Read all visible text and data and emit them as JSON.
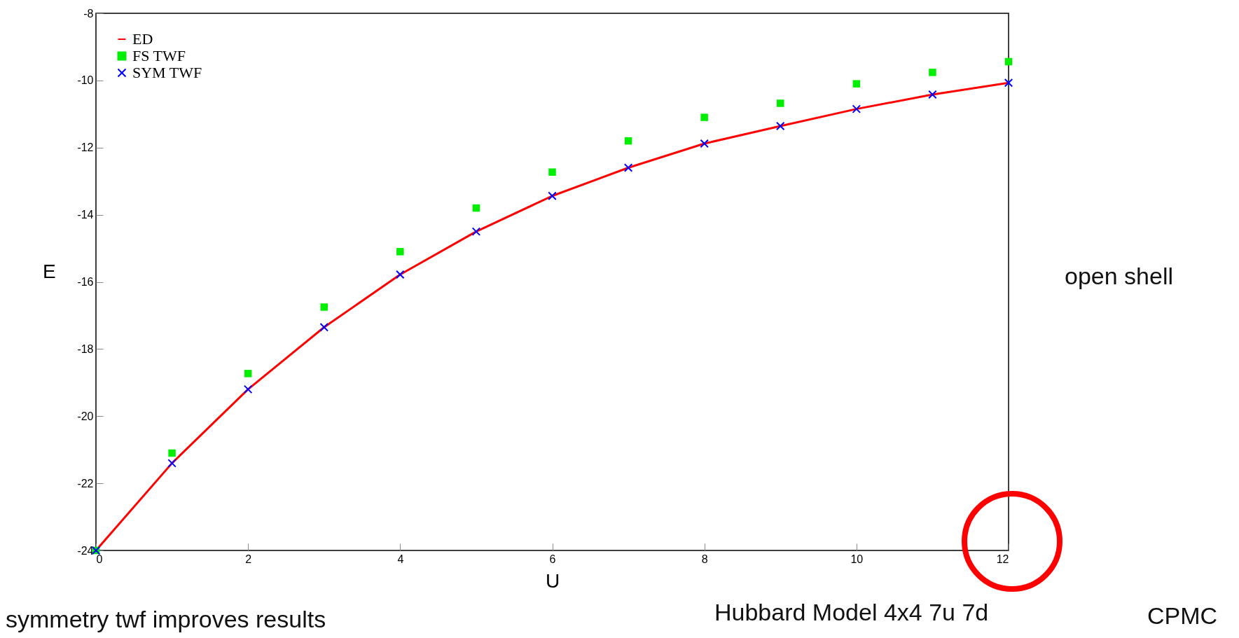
{
  "chart_data": {
    "type": "line",
    "xlabel": "U",
    "ylabel": "E",
    "x": [
      0,
      1,
      2,
      3,
      4,
      5,
      6,
      7,
      8,
      9,
      10,
      11,
      12
    ],
    "series": [
      {
        "name": "ED",
        "marker": "none",
        "color": "#ff0000",
        "values": [
          -24,
          -21.4,
          -19.2,
          -17.35,
          -15.78,
          -14.5,
          -13.44,
          -12.6,
          -11.88,
          -11.36,
          -10.85,
          -10.42,
          -10.07
        ]
      },
      {
        "name": "FS TWF",
        "type": "scatter",
        "marker": "square",
        "color": "#00ee00",
        "values": [
          -24,
          -21.1,
          -18.73,
          -16.75,
          -15.1,
          -13.8,
          -12.73,
          -11.8,
          -11.1,
          -10.68,
          -10.1,
          -9.76,
          -9.44
        ]
      },
      {
        "name": "SYM TWF",
        "type": "scatter",
        "marker": "cross",
        "color": "#0000ff",
        "values": [
          -24,
          -21.4,
          -19.2,
          -17.35,
          -15.78,
          -14.5,
          -13.44,
          -12.6,
          -11.88,
          -11.36,
          -10.85,
          -10.42,
          -10.07
        ]
      }
    ],
    "xlim": [
      0,
      12
    ],
    "xticks": [
      0,
      2,
      4,
      6,
      8,
      10,
      12
    ],
    "ylim": [
      -24,
      -8
    ],
    "yticks": [
      -24,
      -22,
      -20,
      -18,
      -16,
      -14,
      -12,
      -10,
      -8
    ],
    "grid": false,
    "legend": "top left",
    "annotations": [
      "open shell",
      "symmetry twf improves results",
      "Hubbard Model 4x4 7u 7d",
      "CPMC"
    ]
  }
}
